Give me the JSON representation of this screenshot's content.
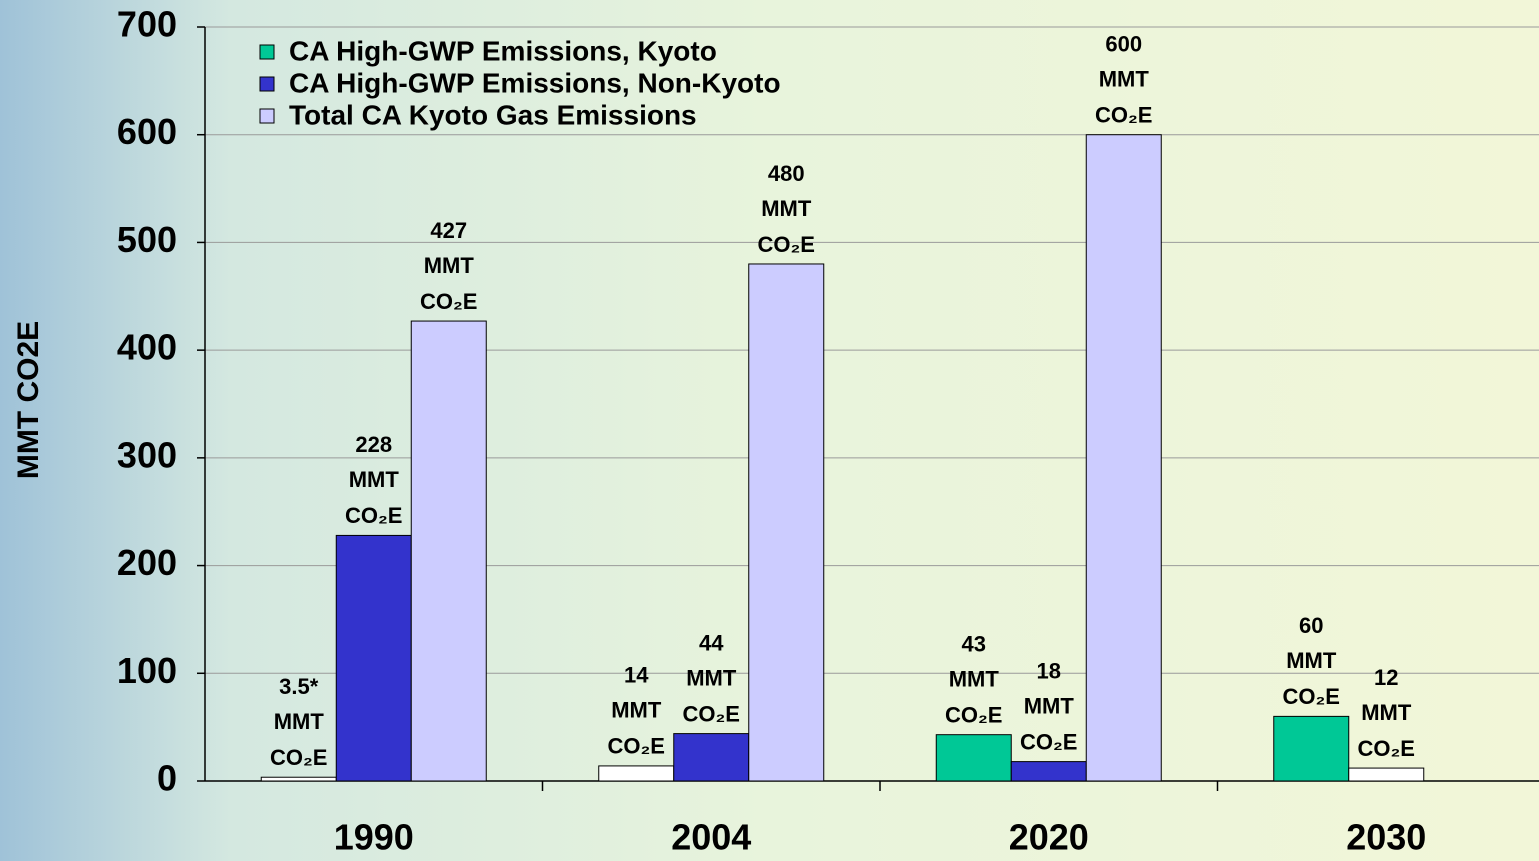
{
  "chart_data": {
    "type": "bar",
    "y_label": "MMT CO2E",
    "categories": [
      "1990",
      "2004",
      "2020",
      "2030"
    ],
    "series": [
      {
        "name": "CA High-GWP Emissions, Kyoto",
        "color": "#00c896",
        "colors": [
          "#ffffff",
          "#ffffff",
          "#00c896",
          "#00c896"
        ],
        "values": [
          3.5,
          14,
          43,
          60
        ],
        "value_labels": [
          "3.5*",
          "14",
          "43",
          "60"
        ]
      },
      {
        "name": "CA High-GWP Emissions, Non-Kyoto",
        "color": "#3333cc",
        "colors": [
          "#3333cc",
          "#3333cc",
          "#3333cc",
          "#ffffff"
        ],
        "values": [
          228,
          44,
          18,
          12
        ],
        "value_labels": [
          "228",
          "44",
          "18",
          "12"
        ]
      },
      {
        "name": "Total CA Kyoto Gas Emissions",
        "color": "#ccccff",
        "colors": [
          "#ccccff",
          "#ccccff",
          "#ccccff",
          "#ccccff"
        ],
        "values": [
          427,
          480,
          600,
          null
        ],
        "value_labels": [
          "427",
          "480",
          "600",
          null
        ]
      }
    ],
    "label_unit": [
      "MMT",
      "CO₂E"
    ],
    "ylim": [
      0,
      700
    ],
    "yticks": [
      0,
      100,
      200,
      300,
      400,
      500,
      600,
      700
    ],
    "grid": true,
    "legend": "top-left"
  }
}
